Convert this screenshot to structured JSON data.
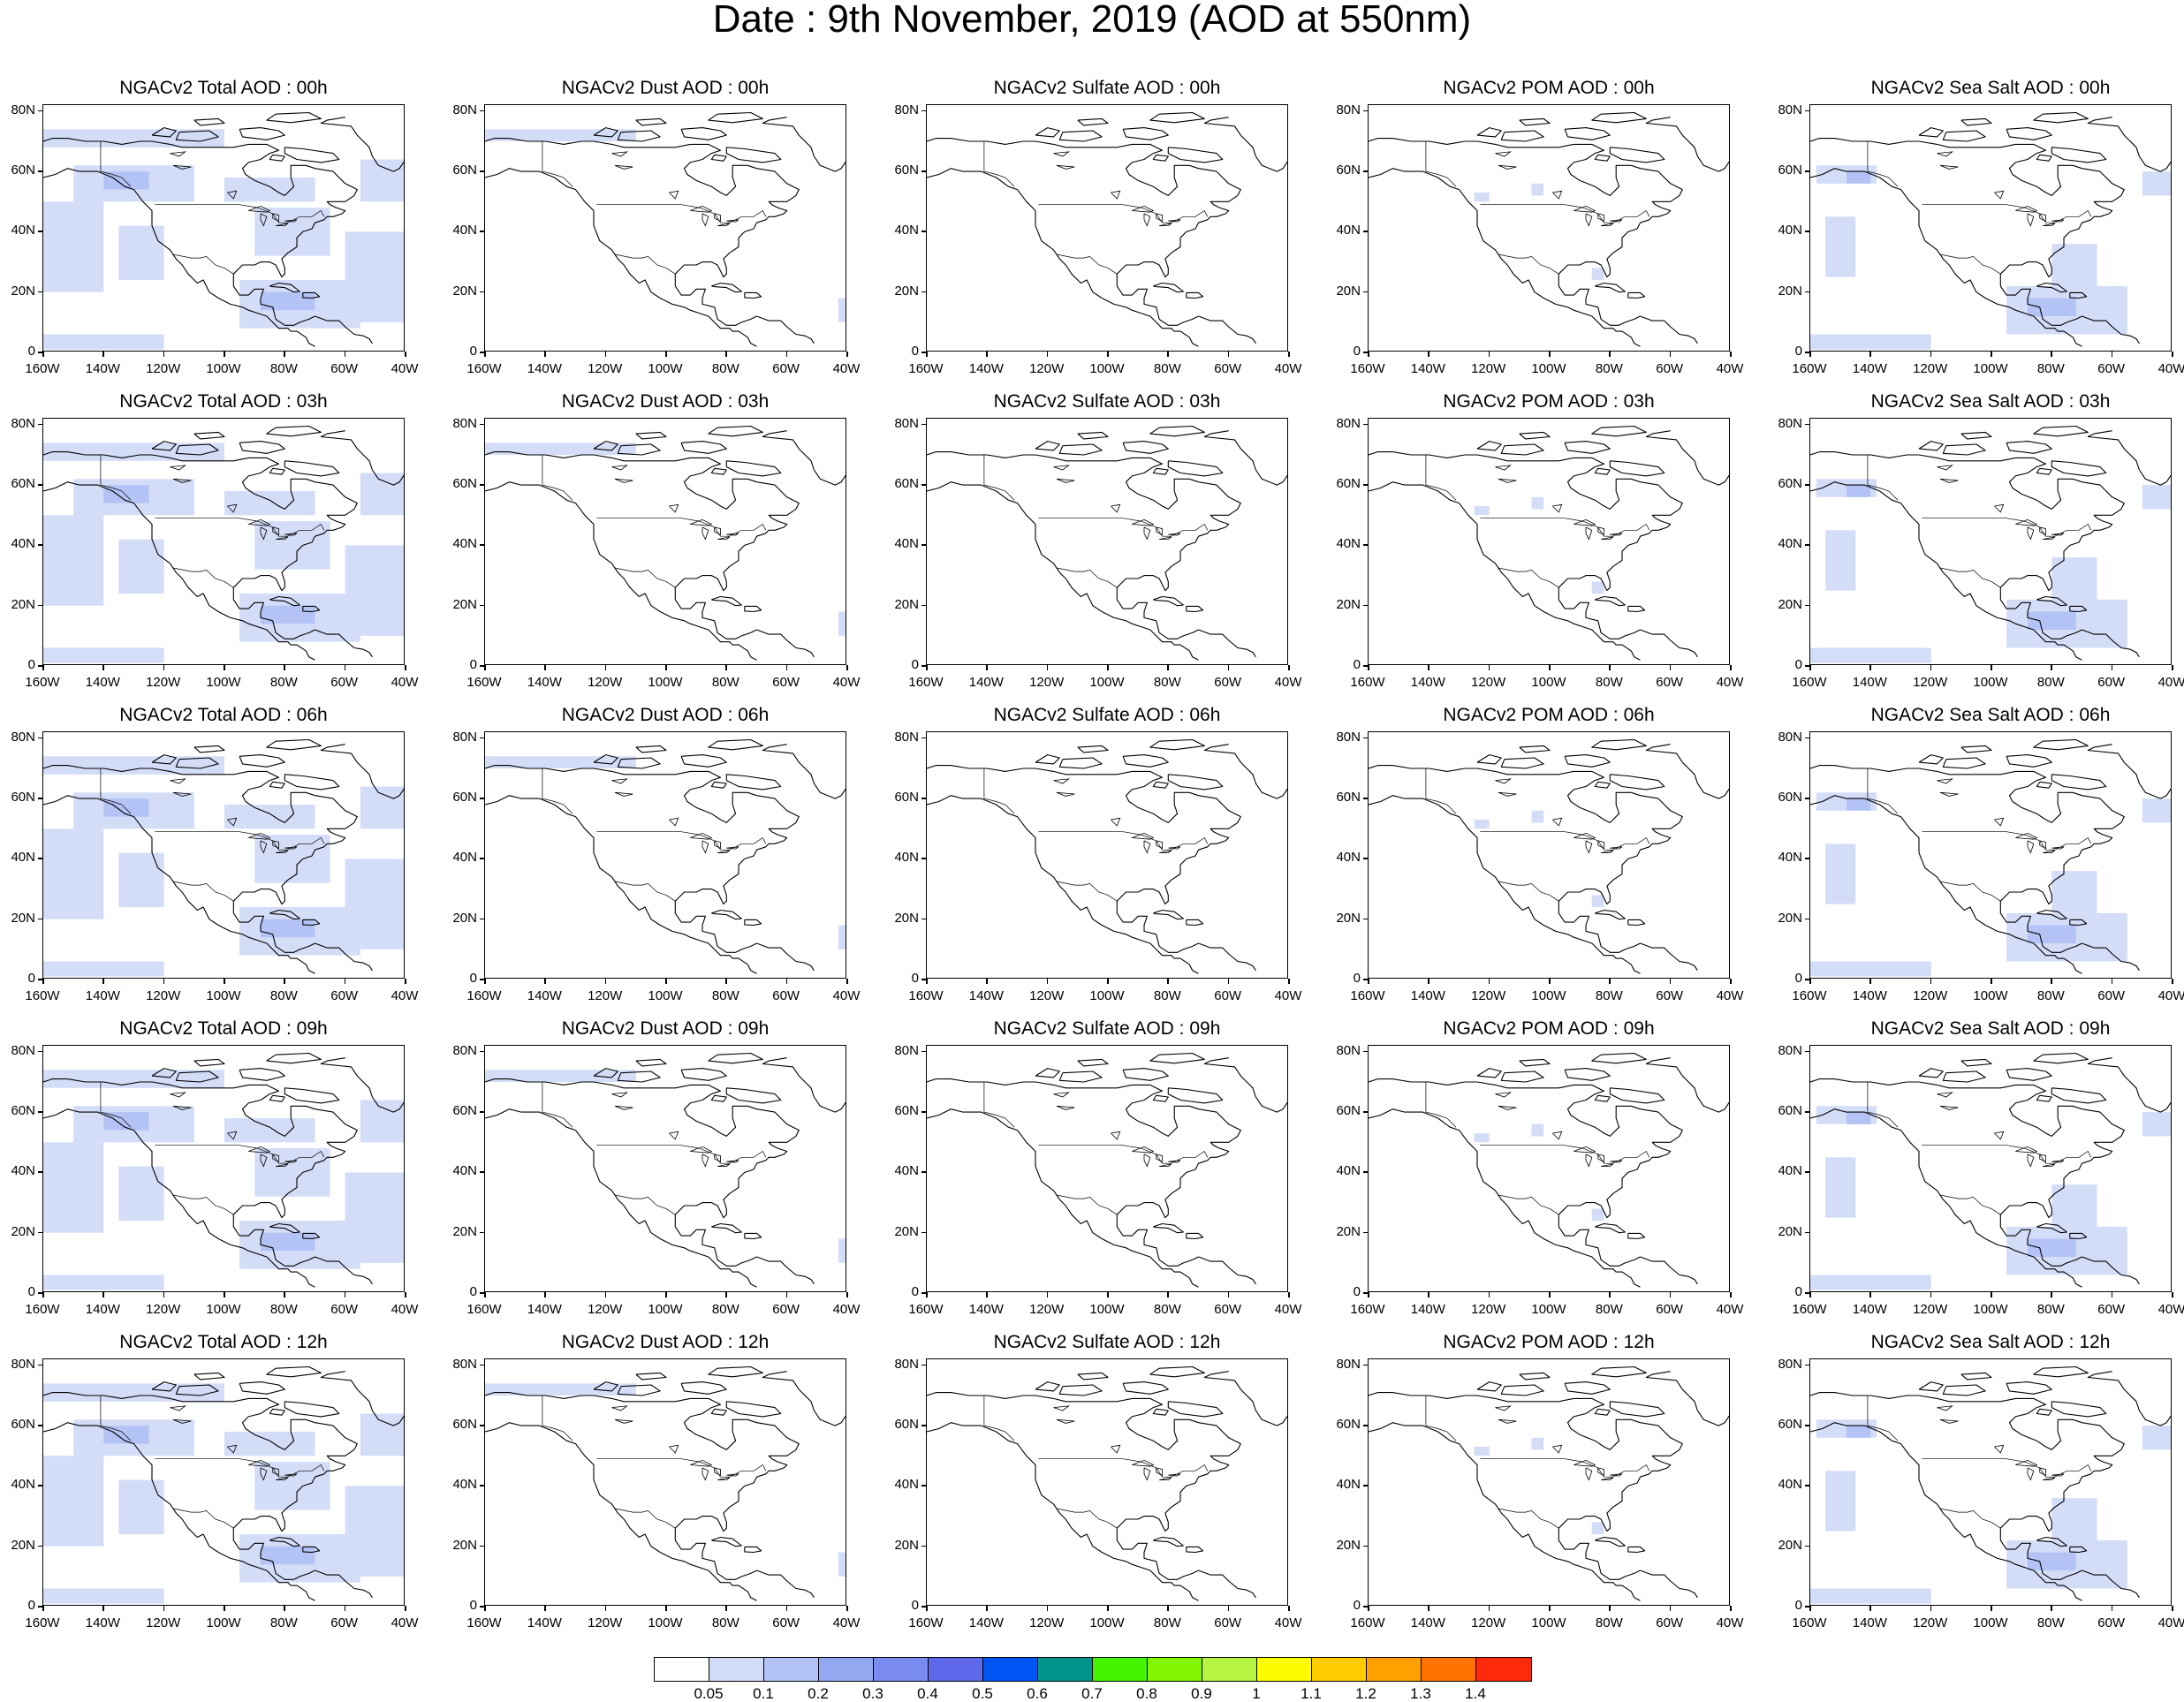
{
  "title": "Date : 9th November, 2019 (AOD at 550nm)",
  "latitude_labels": [
    "80N",
    "60N",
    "40N",
    "20N",
    "0"
  ],
  "longitude_labels": [
    "160W",
    "140W",
    "120W",
    "100W",
    "80W",
    "60W",
    "40W"
  ],
  "panel_titles": [
    [
      "NGACv2 Total AOD : 00h",
      "NGACv2 Dust AOD : 00h",
      "NGACv2 Sulfate AOD : 00h",
      "NGACv2 POM AOD : 00h",
      "NGACv2 Sea Salt AOD : 00h"
    ],
    [
      "NGACv2 Total AOD : 03h",
      "NGACv2 Dust AOD : 03h",
      "NGACv2 Sulfate AOD : 03h",
      "NGACv2 POM AOD : 03h",
      "NGACv2 Sea Salt AOD : 03h"
    ],
    [
      "NGACv2 Total AOD : 06h",
      "NGACv2 Dust AOD : 06h",
      "NGACv2 Sulfate AOD : 06h",
      "NGACv2 POM AOD : 06h",
      "NGACv2 Sea Salt AOD : 06h"
    ],
    [
      "NGACv2 Total AOD : 09h",
      "NGACv2 Dust AOD : 09h",
      "NGACv2 Sulfate AOD : 09h",
      "NGACv2 POM AOD : 09h",
      "NGACv2 Sea Salt  AOD : 09h"
    ],
    [
      "NGACv2 Total AOD  : 12h",
      "NGACv2 Dust AOD : 12h",
      "NGACv2 Sulfate AOD : 12h",
      "NGACv2 POM  AOD : 12h",
      "NGACv2 Sea Salt  AOD : 12h"
    ]
  ],
  "colorbar": {
    "labels": [
      "0.05",
      "0.1",
      "0.2",
      "0.3",
      "0.4",
      "0.5",
      "0.6",
      "0.7",
      "0.8",
      "0.9",
      "1",
      "1.1",
      "1.2",
      "1.3",
      "1.4"
    ],
    "colors": [
      "#ffffff",
      "#d4ddf8",
      "#b4c3f5",
      "#94a8f2",
      "#7a8cf0",
      "#5f68ea",
      "#0056f5",
      "#00968f",
      "#43f500",
      "#84f500",
      "#b5f542",
      "#fffc00",
      "#ffcc00",
      "#ff9f00",
      "#ff7400",
      "#ff2a0a"
    ]
  },
  "aerosol_fields": {
    "total": [
      {
        "lon": [
          -160,
          -100
        ],
        "lat": [
          68,
          74
        ],
        "level": 1
      },
      {
        "lon": [
          -150,
          -110
        ],
        "lat": [
          50,
          62
        ],
        "level": 1
      },
      {
        "lon": [
          -140,
          -125
        ],
        "lat": [
          54,
          60
        ],
        "level": 2
      },
      {
        "lon": [
          -160,
          -140
        ],
        "lat": [
          20,
          50
        ],
        "level": 1
      },
      {
        "lon": [
          -135,
          -120
        ],
        "lat": [
          24,
          42
        ],
        "level": 1
      },
      {
        "lon": [
          -100,
          -70
        ],
        "lat": [
          50,
          58
        ],
        "level": 1
      },
      {
        "lon": [
          -90,
          -65
        ],
        "lat": [
          32,
          48
        ],
        "level": 1
      },
      {
        "lon": [
          -55,
          -40
        ],
        "lat": [
          50,
          64
        ],
        "level": 1
      },
      {
        "lon": [
          -60,
          -40
        ],
        "lat": [
          10,
          40
        ],
        "level": 1
      },
      {
        "lon": [
          -95,
          -55
        ],
        "lat": [
          8,
          24
        ],
        "level": 1
      },
      {
        "lon": [
          -88,
          -70
        ],
        "lat": [
          14,
          20
        ],
        "level": 2
      },
      {
        "lon": [
          -160,
          -120
        ],
        "lat": [
          1,
          6
        ],
        "level": 1
      }
    ],
    "dust": [
      {
        "lon": [
          -160,
          -110
        ],
        "lat": [
          70,
          74
        ],
        "level": 1
      },
      {
        "lon": [
          -43,
          -40
        ],
        "lat": [
          10,
          18
        ],
        "level": 1
      }
    ],
    "sulfate": [],
    "pom": [
      {
        "lon": [
          -125,
          -120
        ],
        "lat": [
          50,
          53
        ],
        "level": 1
      },
      {
        "lon": [
          -106,
          -102
        ],
        "lat": [
          52,
          56
        ],
        "level": 1
      },
      {
        "lon": [
          -86,
          -82
        ],
        "lat": [
          24,
          28
        ],
        "level": 1
      }
    ],
    "seasalt": [
      {
        "lon": [
          -158,
          -138
        ],
        "lat": [
          56,
          62
        ],
        "level": 1
      },
      {
        "lon": [
          -148,
          -140
        ],
        "lat": [
          56,
          60
        ],
        "level": 2
      },
      {
        "lon": [
          -155,
          -145
        ],
        "lat": [
          25,
          45
        ],
        "level": 1
      },
      {
        "lon": [
          -50,
          -40
        ],
        "lat": [
          52,
          60
        ],
        "level": 1
      },
      {
        "lon": [
          -80,
          -65
        ],
        "lat": [
          22,
          36
        ],
        "level": 1
      },
      {
        "lon": [
          -95,
          -55
        ],
        "lat": [
          6,
          22
        ],
        "level": 1
      },
      {
        "lon": [
          -88,
          -72
        ],
        "lat": [
          12,
          18
        ],
        "level": 2
      },
      {
        "lon": [
          -160,
          -120
        ],
        "lat": [
          1,
          6
        ],
        "level": 1
      }
    ]
  }
}
